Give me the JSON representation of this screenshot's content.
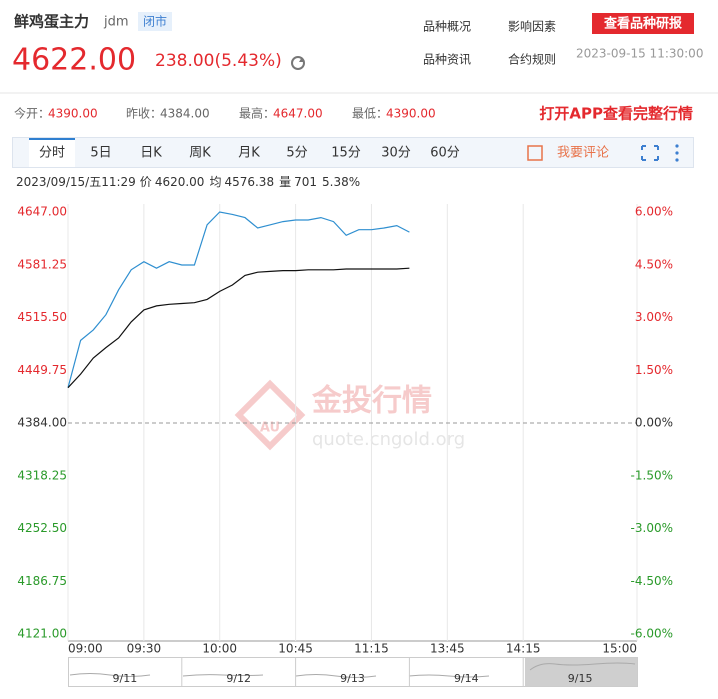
{
  "header": {
    "name": "鲜鸡蛋主力",
    "code": "jdm",
    "status": "闭市",
    "price": "4622.00",
    "change": "238.00(5.43%)",
    "links": [
      "品种概况",
      "影响因素",
      "品种资讯",
      "合约规则"
    ],
    "report_button": "查看品种研报",
    "timestamp": "2023-09-15 11:30:00"
  },
  "stats": [
    {
      "label": "今开：",
      "value": "4390.00"
    },
    {
      "label": "昨收：",
      "value": "4384.00"
    },
    {
      "label": "最高：",
      "value": "4647.00"
    },
    {
      "label": "最低：",
      "value": "4390.00"
    }
  ],
  "app_link": "打开APP查看完整行情",
  "tabs": [
    "分时",
    "5日",
    "日K",
    "周K",
    "月K",
    "5分",
    "15分",
    "30分",
    "60分"
  ],
  "comment": "我要评论",
  "info": [
    "2023/09/15/五11:29",
    "价",
    "4620.00",
    "均",
    "4576.38",
    "量",
    "701",
    "5.38%"
  ],
  "watermark": {
    "title": "金投行情",
    "url": "quote.cngold.org",
    "logo": "AU"
  },
  "navigator": {
    "dates": [
      "9/11",
      "9/12",
      "9/13",
      "9/14",
      "9/15"
    ]
  },
  "chart_data": {
    "type": "line",
    "categories": [
      "09:00",
      null,
      null,
      null,
      null,
      null,
      "09:30",
      null,
      null,
      null,
      null,
      null,
      "10:00",
      null,
      null,
      null,
      null,
      null,
      "10:45",
      null,
      null,
      null,
      null,
      null,
      "11:15",
      null,
      null,
      null,
      null,
      null,
      "13:45",
      null,
      null,
      null,
      null,
      null,
      "14:15",
      null,
      null,
      null,
      null,
      null,
      null,
      null,
      null,
      "15:00"
    ],
    "series": [
      {
        "color": "#2f8fd0",
        "values": [
          4428,
          4487,
          4500,
          4519,
          4550,
          4575,
          4585,
          4577,
          4585,
          4581,
          4581,
          4631,
          4647,
          4644,
          4640,
          4627,
          4631,
          4635,
          4637,
          4637,
          4640,
          4635,
          4618,
          4625,
          4625,
          4627,
          4630,
          4622,
          null,
          null,
          null,
          null,
          null,
          null,
          null,
          null,
          null,
          null,
          null,
          null,
          null,
          null,
          null,
          null,
          null,
          null
        ]
      },
      {
        "color": "#111111",
        "values": [
          4428,
          4445,
          4465,
          4478,
          4490,
          4510,
          4525,
          4530,
          4532,
          4533,
          4534,
          4538,
          4548,
          4556,
          4568,
          4572,
          4573,
          4574,
          4574,
          4575,
          4575,
          4575,
          4576,
          4576,
          4576,
          4576,
          4576,
          4577,
          null,
          null,
          null,
          null,
          null,
          null,
          null,
          null,
          null,
          null,
          null,
          null,
          null,
          null,
          null,
          null,
          null,
          null
        ]
      }
    ],
    "ylim": [
      4121,
      4647
    ],
    "yticks": [
      {
        "value": 4647,
        "label": "4647.00"
      },
      {
        "value": 4581.25,
        "label": "4581.25"
      },
      {
        "value": 4515.5,
        "label": "4515.50"
      },
      {
        "value": 4449.75,
        "label": "4449.75"
      },
      {
        "value": 4384,
        "label": "4384.00"
      },
      {
        "value": 4318.25,
        "label": "4318.25"
      },
      {
        "value": 4252.5,
        "label": "4252.50"
      },
      {
        "value": 4186.75,
        "label": "4186.75"
      },
      {
        "value": 4121,
        "label": "4121.00"
      }
    ],
    "y2lim": [
      -6,
      6
    ],
    "y2ticks": [
      {
        "value": 6,
        "label": "6.00%"
      },
      {
        "value": 4.5,
        "label": "4.50%"
      },
      {
        "value": 3,
        "label": "3.00%"
      },
      {
        "value": 1.5,
        "label": "1.50%"
      },
      {
        "value": 0,
        "label": "0.00%"
      },
      {
        "value": -1.5,
        "label": "-1.50%"
      },
      {
        "value": -3,
        "label": "-3.00%"
      },
      {
        "value": -4.5,
        "label": "-4.50%"
      },
      {
        "value": -6,
        "label": "-6.00%"
      }
    ],
    "grid": true
  }
}
